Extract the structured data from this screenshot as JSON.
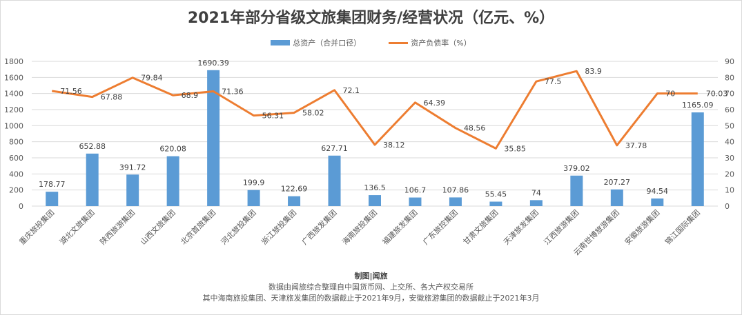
{
  "title": "2021年部分省级文旅集团财务/经营状况（亿元、%）",
  "legend": {
    "bar": "总资产（合并口径）",
    "line": "资产负债率（%）"
  },
  "colors": {
    "bar": "#5b9bd5",
    "line": "#ed7d31",
    "grid": "#d9d9d9",
    "text": "#595959"
  },
  "footer": {
    "credit": "制图|闻旅",
    "source": "数据由闻旅综合整理自中国货币网、上交所、各大产权交易所",
    "note": "其中海南旅投集团、天津旅发集团的数据截止于2021年9月，安徽旅游集团的数据截止于2021年3月"
  },
  "chart_data": {
    "type": "bar+line",
    "title": "2021年部分省级文旅集团财务/经营状况（亿元、%）",
    "categories": [
      "重庆旅投集团",
      "湖北文旅集团",
      "陕西旅游集团",
      "山西文旅集团",
      "北京首旅集团",
      "河北旅投集团",
      "浙江旅投集团",
      "广西旅发集团",
      "海南旅投集团",
      "福建旅发集团",
      "广东旅控集团",
      "甘肃文旅集团",
      "天津旅发集团",
      "江西旅游集团",
      "云南世博旅游集团",
      "安徽旅游集团",
      "锦江国际集团"
    ],
    "series": [
      {
        "name": "总资产（合并口径）",
        "type": "bar",
        "axis": "left",
        "values": [
          178.77,
          652.88,
          391.72,
          620.08,
          1690.39,
          199.9,
          122.69,
          627.71,
          136.5,
          106.7,
          107.86,
          55.45,
          74,
          379.02,
          207.27,
          94.54,
          1165.09
        ]
      },
      {
        "name": "资产负债率（%）",
        "type": "line",
        "axis": "right",
        "values": [
          71.56,
          67.88,
          79.84,
          68.9,
          71.36,
          56.31,
          58.02,
          72.1,
          38.12,
          64.39,
          48.56,
          35.85,
          77.5,
          83.9,
          37.78,
          70,
          70.03
        ]
      }
    ],
    "left_axis": {
      "ylim": [
        0,
        1800
      ],
      "ticks": [
        0,
        200,
        400,
        600,
        800,
        1000,
        1200,
        1400,
        1600,
        1800
      ]
    },
    "right_axis": {
      "ylim": [
        0,
        90
      ],
      "ticks": [
        0,
        10,
        20,
        30,
        40,
        50,
        60,
        70,
        80,
        90
      ]
    },
    "legend_position": "top",
    "grid": true
  }
}
